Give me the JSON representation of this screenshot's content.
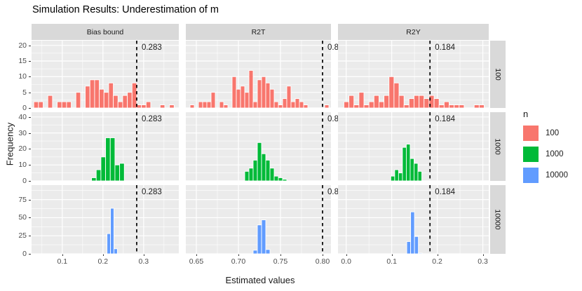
{
  "colors": {
    "panel_bg": "#EBEBEB",
    "strip_bg": "#D9D9D9",
    "grid": "#FFFFFF",
    "axis_text": "#4D4D4D",
    "vline": "#000000",
    "n100": "#F8766D",
    "n1000": "#00BA38",
    "n10000": "#619CFF"
  },
  "legend": {
    "title": "n",
    "items": [
      {
        "label": "100",
        "color": "#F8766D"
      },
      {
        "label": "1000",
        "color": "#00BA38"
      },
      {
        "label": "10000",
        "color": "#619CFF"
      }
    ]
  },
  "chart_data": {
    "type": "bar",
    "subtype": "faceted-histogram-grid",
    "title": "Simulation Results: Underestimation of m",
    "xlabel": "Estimated values",
    "ylabel": "Frequency",
    "legend_title": "n",
    "legend_position": "right",
    "grid": true,
    "facet_cols": [
      {
        "label": "Bias bound",
        "xlim": [
          0.0245,
          0.3865
        ],
        "xticks": [
          0.1,
          0.2,
          0.3
        ],
        "xtick_labels": [
          "0.1",
          "0.2",
          "0.3"
        ],
        "vline": 0.283,
        "vline_label": "0.283"
      },
      {
        "label": "R2T",
        "xlim": [
          0.6375,
          0.81
        ],
        "xticks": [
          0.65,
          0.7,
          0.75,
          0.8
        ],
        "xtick_labels": [
          "0.65",
          "0.70",
          "0.75",
          "0.80"
        ],
        "vline": 0.8,
        "vline_label": "0.8"
      },
      {
        "label": "R2Y",
        "xlim": [
          -0.018,
          0.313
        ],
        "xticks": [
          0.0,
          0.1,
          0.2,
          0.3
        ],
        "xtick_labels": [
          "0.0",
          "0.1",
          "0.2",
          "0.3"
        ],
        "vline": 0.184,
        "vline_label": "0.184"
      }
    ],
    "facet_rows": [
      {
        "label": "100",
        "n": 100,
        "color": "#F8766D",
        "ylim": [
          0,
          21.5
        ],
        "yticks": [
          0,
          5,
          10,
          15,
          20
        ],
        "ytick_labels": [
          "0",
          "5",
          "10",
          "15",
          "20"
        ]
      },
      {
        "label": "1000",
        "n": 1000,
        "color": "#00BA38",
        "ylim": [
          0,
          43
        ],
        "yticks": [
          0,
          10,
          20,
          30,
          40
        ],
        "ytick_labels": [
          "0",
          "10",
          "20",
          "30",
          "40"
        ]
      },
      {
        "label": "10000",
        "n": 10000,
        "color": "#619CFF",
        "ylim": [
          0,
          95
        ],
        "yticks": [
          0,
          25,
          50,
          75
        ],
        "ytick_labels": [
          "0",
          "25",
          "50",
          "75"
        ]
      }
    ],
    "panels": [
      {
        "row": 0,
        "col": 0,
        "n": 100,
        "bin_start": 0.03,
        "binwidth": 0.0115,
        "counts": [
          2,
          2,
          0,
          4,
          0,
          2,
          2,
          2,
          0,
          5,
          0,
          7,
          9,
          9,
          6,
          5,
          8,
          4,
          2,
          4,
          5,
          8,
          1,
          1,
          2,
          0,
          0,
          1,
          0,
          1
        ]
      },
      {
        "row": 0,
        "col": 1,
        "n": 100,
        "bin_start": 0.6425,
        "binwidth": 0.005,
        "counts": [
          1,
          0,
          2,
          2,
          2,
          5,
          0,
          2,
          1,
          0,
          10,
          6,
          7,
          5,
          12,
          2,
          9,
          10,
          8,
          6,
          2,
          1,
          3,
          7,
          2,
          3,
          2,
          1,
          0,
          0,
          0,
          0,
          1
        ]
      },
      {
        "row": 0,
        "col": 2,
        "n": 100,
        "bin_start": -0.005,
        "binwidth": 0.011,
        "counts": [
          2,
          4,
          1,
          5,
          1,
          2,
          4,
          2,
          4,
          10,
          8,
          4,
          1,
          3,
          4,
          4,
          3,
          4,
          3,
          1,
          2,
          1,
          1,
          1,
          0,
          0,
          1,
          1,
          0
        ]
      },
      {
        "row": 1,
        "col": 0,
        "n": 1000,
        "bin_start": 0.172,
        "binwidth": 0.0115,
        "counts": [
          2,
          7,
          15,
          27,
          27,
          10,
          11
        ]
      },
      {
        "row": 1,
        "col": 1,
        "n": 1000,
        "bin_start": 0.7075,
        "binwidth": 0.005,
        "counts": [
          6,
          8,
          13,
          24,
          17,
          13,
          8,
          3,
          2,
          1
        ]
      },
      {
        "row": 1,
        "col": 2,
        "n": 1000,
        "bin_start": 0.098,
        "binwidth": 0.0085,
        "counts": [
          3,
          7,
          5,
          21,
          23,
          14,
          11,
          6
        ]
      },
      {
        "row": 2,
        "col": 0,
        "n": 10000,
        "bin_start": 0.21,
        "binwidth": 0.0085,
        "counts": [
          28,
          63,
          7
        ]
      },
      {
        "row": 2,
        "col": 1,
        "n": 10000,
        "bin_start": 0.7175,
        "binwidth": 0.005,
        "counts": [
          5,
          40,
          47,
          6
        ]
      },
      {
        "row": 2,
        "col": 2,
        "n": 10000,
        "bin_start": 0.133,
        "binwidth": 0.0085,
        "counts": [
          17,
          58,
          24,
          1
        ]
      }
    ]
  }
}
